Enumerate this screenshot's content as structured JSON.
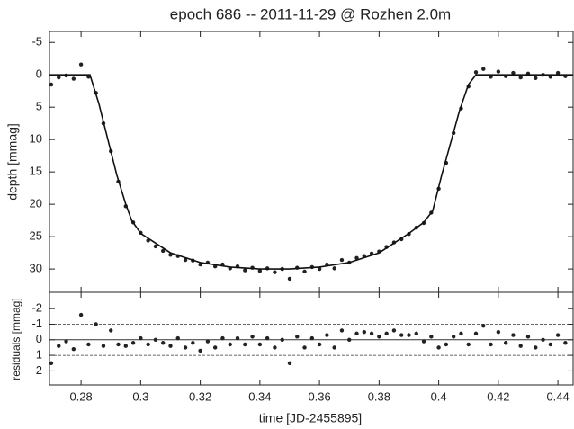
{
  "chart_data": [
    {
      "type": "scatter",
      "title": "epoch 686 -- 2011-11-29 @ Rozhen 2.0m",
      "y_label": "depth [mmag]",
      "xlim": [
        0.2694,
        0.4451
      ],
      "ylim": [
        -6.7,
        33.6
      ],
      "y_inverted": true,
      "yticks": [
        -5,
        0,
        5,
        10,
        15,
        20,
        25,
        30
      ],
      "series": [
        {
          "style": "points",
          "color": "#222222",
          "x": [
            0.27,
            0.2725,
            0.275,
            0.2775,
            0.28,
            0.2825,
            0.285,
            0.2875,
            0.29,
            0.2925,
            0.295,
            0.2975,
            0.3,
            0.3025,
            0.305,
            0.3075,
            0.31,
            0.3125,
            0.315,
            0.3175,
            0.32,
            0.3225,
            0.325,
            0.3275,
            0.33,
            0.3325,
            0.335,
            0.3375,
            0.34,
            0.3425,
            0.345,
            0.3475,
            0.35,
            0.3525,
            0.355,
            0.3575,
            0.36,
            0.3625,
            0.365,
            0.3675,
            0.37,
            0.3725,
            0.375,
            0.3775,
            0.38,
            0.3825,
            0.385,
            0.3875,
            0.39,
            0.3925,
            0.395,
            0.3975,
            0.4,
            0.4025,
            0.405,
            0.4075,
            0.41,
            0.4125,
            0.415,
            0.4175,
            0.42,
            0.4225,
            0.425,
            0.4275,
            0.43,
            0.4325,
            0.435,
            0.4375,
            0.44,
            0.4425
          ],
          "values": [
            1.5,
            0.4,
            0.1,
            0.6,
            -1.6,
            0.3,
            2.8,
            7.5,
            11.8,
            16.5,
            20.3,
            22.8,
            24.4,
            25.6,
            26.5,
            27.2,
            27.8,
            28.0,
            28.6,
            28.7,
            29.3,
            29.0,
            29.6,
            29.3,
            29.9,
            29.6,
            30.2,
            29.8,
            30.3,
            29.9,
            30.5,
            30.0,
            31.5,
            29.8,
            30.4,
            29.7,
            30.0,
            29.3,
            29.9,
            28.6,
            29.0,
            28.3,
            28.0,
            27.6,
            27.3,
            26.6,
            25.9,
            25.4,
            24.6,
            23.6,
            22.9,
            21.3,
            17.6,
            13.6,
            9.0,
            5.2,
            1.8,
            -0.4,
            -0.9,
            0.3,
            -0.5,
            0.2,
            -0.3,
            0.4,
            -0.2,
            0.5,
            0.0,
            0.3,
            -0.3,
            0.2
          ]
        },
        {
          "style": "line",
          "color": "#111111",
          "x": [
            0.2694,
            0.283,
            0.286,
            0.289,
            0.292,
            0.295,
            0.297,
            0.3,
            0.31,
            0.32,
            0.33,
            0.34,
            0.35,
            0.36,
            0.37,
            0.38,
            0.39,
            0.395,
            0.398,
            0.401,
            0.404,
            0.407,
            0.41,
            0.4125,
            0.4451
          ],
          "values": [
            0,
            0,
            4.5,
            10,
            15.5,
            20,
            22.5,
            24.5,
            27.5,
            29,
            29.7,
            30,
            30,
            29.7,
            29,
            27.5,
            24.5,
            22.8,
            21,
            15.5,
            10.5,
            5.5,
            1.5,
            0,
            0
          ]
        }
      ]
    },
    {
      "type": "scatter",
      "y_label": "residuals [mmag]",
      "x_label": "time [JD-2455895]",
      "xlim": [
        0.2694,
        0.4451
      ],
      "ylim": [
        -3.05,
        2.9
      ],
      "y_inverted": true,
      "xticks": [
        0.28,
        0.3,
        0.32,
        0.34,
        0.36,
        0.38,
        0.4,
        0.42,
        0.44
      ],
      "yticks": [
        -2,
        -1,
        0,
        1,
        2
      ],
      "hlines": [
        {
          "value": -1,
          "dashed": true
        },
        {
          "value": 0,
          "dashed": false
        },
        {
          "value": 1,
          "dashed": true
        }
      ],
      "series": [
        {
          "style": "points",
          "color": "#222222",
          "x": [
            0.27,
            0.2725,
            0.275,
            0.2775,
            0.28,
            0.2825,
            0.285,
            0.2875,
            0.29,
            0.2925,
            0.295,
            0.2975,
            0.3,
            0.3025,
            0.305,
            0.3075,
            0.31,
            0.3125,
            0.315,
            0.3175,
            0.32,
            0.3225,
            0.325,
            0.3275,
            0.33,
            0.3325,
            0.335,
            0.3375,
            0.34,
            0.3425,
            0.345,
            0.3475,
            0.35,
            0.3525,
            0.355,
            0.3575,
            0.36,
            0.3625,
            0.365,
            0.3675,
            0.37,
            0.3725,
            0.375,
            0.3775,
            0.38,
            0.3825,
            0.385,
            0.3875,
            0.39,
            0.3925,
            0.395,
            0.3975,
            0.4,
            0.4025,
            0.405,
            0.4075,
            0.41,
            0.4125,
            0.415,
            0.4175,
            0.42,
            0.4225,
            0.425,
            0.4275,
            0.43,
            0.4325,
            0.435,
            0.4375,
            0.44,
            0.4425
          ],
          "values": [
            1.5,
            0.4,
            0.1,
            0.6,
            -1.6,
            0.3,
            -1.0,
            0.4,
            -0.6,
            0.3,
            0.4,
            0.2,
            -0.1,
            0.3,
            0.0,
            0.2,
            0.4,
            -0.1,
            0.5,
            0.2,
            0.7,
            0.1,
            0.5,
            -0.1,
            0.3,
            -0.1,
            0.3,
            -0.2,
            0.3,
            -0.1,
            0.5,
            0.0,
            1.5,
            -0.2,
            0.5,
            -0.1,
            0.3,
            -0.3,
            0.5,
            -0.6,
            0.0,
            -0.4,
            -0.5,
            -0.4,
            -0.2,
            -0.4,
            -0.6,
            -0.3,
            -0.3,
            -0.4,
            0.1,
            -0.2,
            0.5,
            0.3,
            -0.2,
            -0.4,
            0.3,
            -0.4,
            -0.9,
            0.3,
            -0.5,
            0.2,
            -0.3,
            0.4,
            -0.2,
            0.5,
            0.0,
            0.3,
            -0.3,
            0.2
          ]
        }
      ]
    }
  ]
}
